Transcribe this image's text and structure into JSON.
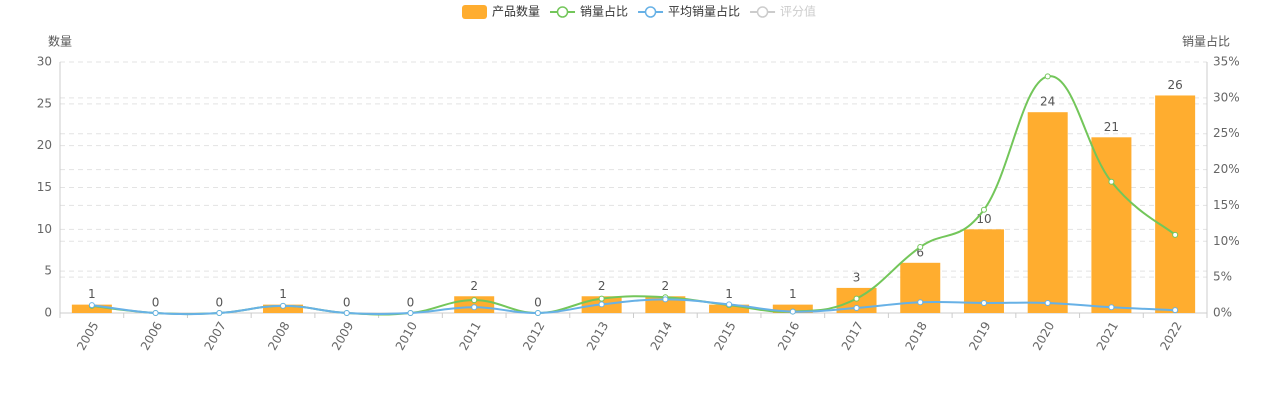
{
  "chart_data": {
    "type": "bar-line",
    "categories": [
      "2005",
      "2006",
      "2007",
      "2008",
      "2009",
      "2010",
      "2011",
      "2012",
      "2013",
      "2014",
      "2015",
      "2016",
      "2017",
      "2018",
      "2019",
      "2020",
      "2021",
      "2022"
    ],
    "yaxis_label": "数量",
    "y2axis_label": "销量占比",
    "ylim": [
      0,
      30
    ],
    "yticks": [
      0,
      5,
      10,
      15,
      20,
      25,
      30
    ],
    "y2lim": [
      0,
      35
    ],
    "y2ticks": [
      {
        "value": 0,
        "label": "0%"
      },
      {
        "value": 5,
        "label": "5%"
      },
      {
        "value": 10,
        "label": "10%"
      },
      {
        "value": 15,
        "label": "15%"
      },
      {
        "value": 20,
        "label": "20%"
      },
      {
        "value": 25,
        "label": "25%"
      },
      {
        "value": 30,
        "label": "30%"
      },
      {
        "value": 35,
        "label": "35%"
      }
    ],
    "grid": true,
    "series": [
      {
        "name": "产品数量",
        "kind": "bar",
        "color": "#ffad2f",
        "values": [
          1,
          0,
          0,
          1,
          0,
          0,
          2,
          0,
          2,
          2,
          1,
          1,
          3,
          6,
          10,
          24,
          21,
          26
        ]
      },
      {
        "name": "销量占比",
        "kind": "line",
        "axis": "y2",
        "color": "#73c65a",
        "values": [
          1,
          0,
          0,
          1,
          0,
          0,
          1.8,
          0,
          2,
          2.2,
          1.1,
          0.2,
          2,
          9.2,
          14.4,
          33,
          18.3,
          10.9
        ]
      },
      {
        "name": "平均销量占比",
        "kind": "line",
        "axis": "y2",
        "color": "#67b1e6",
        "values": [
          1.1,
          0,
          0,
          1,
          0,
          0,
          0.8,
          0,
          1.2,
          1.9,
          1.2,
          0.2,
          0.7,
          1.5,
          1.4,
          1.4,
          0.8,
          0.4
        ]
      },
      {
        "name": "评分值",
        "kind": "line",
        "axis": "y2",
        "color": "#cccccc",
        "hidden": true
      }
    ]
  }
}
